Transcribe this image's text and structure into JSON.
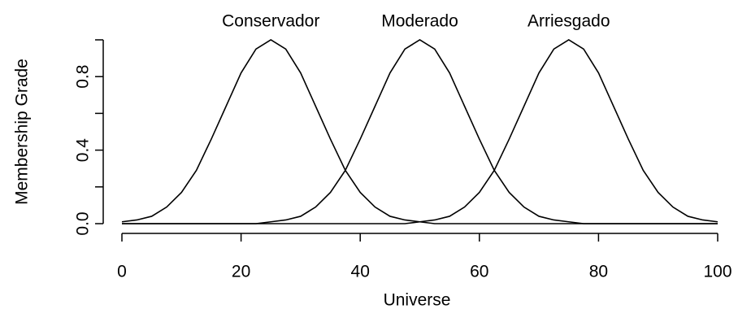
{
  "chart_data": {
    "type": "line",
    "xlabel": "Universe",
    "ylabel": "Membership Grade",
    "x": [
      0,
      2.5,
      5,
      7.5,
      10,
      12.5,
      15,
      17.5,
      20,
      22.5,
      25,
      27.5,
      30,
      32.5,
      35,
      37.5,
      40,
      42.5,
      45,
      47.5,
      50,
      52.5,
      55,
      57.5,
      60,
      62.5,
      65,
      67.5,
      70,
      72.5,
      75,
      77.5,
      80,
      82.5,
      85,
      87.5,
      90,
      92.5,
      95,
      97.5,
      100
    ],
    "series": [
      {
        "name": "Conservador",
        "color": "#000000",
        "values": [
          0.01,
          0.02,
          0.04,
          0.09,
          0.17,
          0.29,
          0.46,
          0.64,
          0.82,
          0.95,
          1,
          0.95,
          0.82,
          0.64,
          0.46,
          0.29,
          0.17,
          0.09,
          0.04,
          0.02,
          0.01,
          0,
          0,
          0,
          0,
          0,
          0,
          0,
          0,
          0,
          0,
          0,
          0,
          0,
          0,
          0,
          0,
          0,
          0,
          0,
          0
        ]
      },
      {
        "name": "Moderado",
        "color": "#000000",
        "values": [
          0,
          0,
          0,
          0,
          0,
          0,
          0,
          0,
          0,
          0,
          0.01,
          0.02,
          0.04,
          0.09,
          0.17,
          0.29,
          0.46,
          0.64,
          0.82,
          0.95,
          1,
          0.95,
          0.82,
          0.64,
          0.46,
          0.29,
          0.17,
          0.09,
          0.04,
          0.02,
          0.01,
          0,
          0,
          0,
          0,
          0,
          0,
          0,
          0,
          0,
          0
        ]
      },
      {
        "name": "Arriesgado",
        "color": "#000000",
        "values": [
          0,
          0,
          0,
          0,
          0,
          0,
          0,
          0,
          0,
          0,
          0,
          0,
          0,
          0,
          0,
          0,
          0,
          0,
          0,
          0,
          0.01,
          0.02,
          0.04,
          0.09,
          0.17,
          0.29,
          0.46,
          0.64,
          0.82,
          0.95,
          1,
          0.95,
          0.82,
          0.64,
          0.46,
          0.29,
          0.17,
          0.09,
          0.04,
          0.02,
          0.01
        ]
      }
    ],
    "xlim": [
      0,
      100
    ],
    "xticks": [
      0,
      20,
      40,
      60,
      80,
      100
    ],
    "ylim": [
      0,
      1
    ],
    "yticks": [
      {
        "value": 0,
        "label": "0.0"
      },
      {
        "value": 0.4,
        "label": "0.4"
      },
      {
        "value": 0.8,
        "label": "0.8"
      }
    ],
    "yminor_ticks": [
      0.2,
      0.6,
      1
    ],
    "grid": false
  }
}
